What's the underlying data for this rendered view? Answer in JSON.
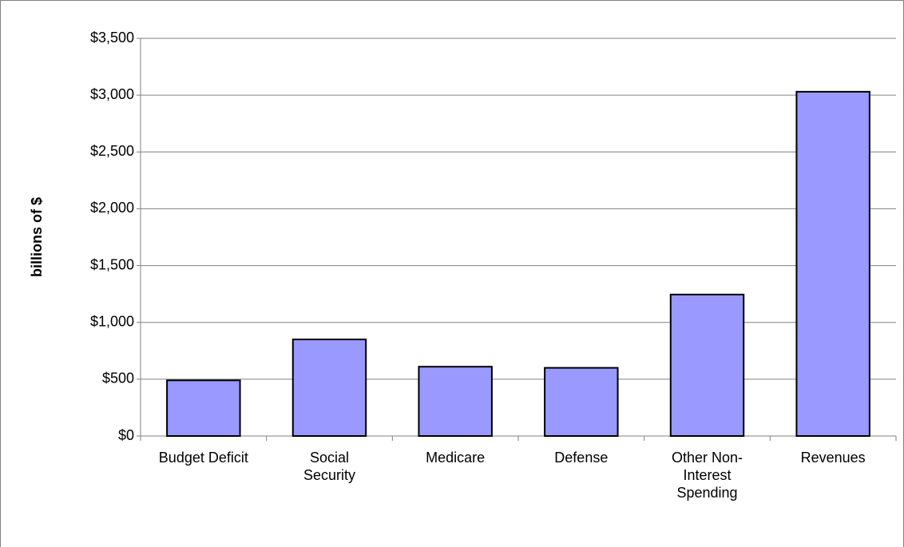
{
  "chart_data": {
    "type": "bar",
    "y_label": "billions of $",
    "categories": [
      "Budget Deficit",
      "Social Security",
      "Medicare",
      "Defense",
      "Other Non-Interest Spending",
      "Revenues"
    ],
    "values": [
      490,
      850,
      610,
      600,
      1245,
      3030
    ],
    "color": "#9999ff",
    "ylim": [
      0,
      3500
    ],
    "yticks": [
      {
        "value": 0,
        "label": "$0"
      },
      {
        "value": 500,
        "label": "$500"
      },
      {
        "value": 1000,
        "label": "$1,000"
      },
      {
        "value": 1500,
        "label": "$1,500"
      },
      {
        "value": 2000,
        "label": "$2,000"
      },
      {
        "value": 2500,
        "label": "$2,500"
      },
      {
        "value": 3000,
        "label": "$3,000"
      },
      {
        "value": 3500,
        "label": "$3,500"
      }
    ],
    "grid": true
  }
}
